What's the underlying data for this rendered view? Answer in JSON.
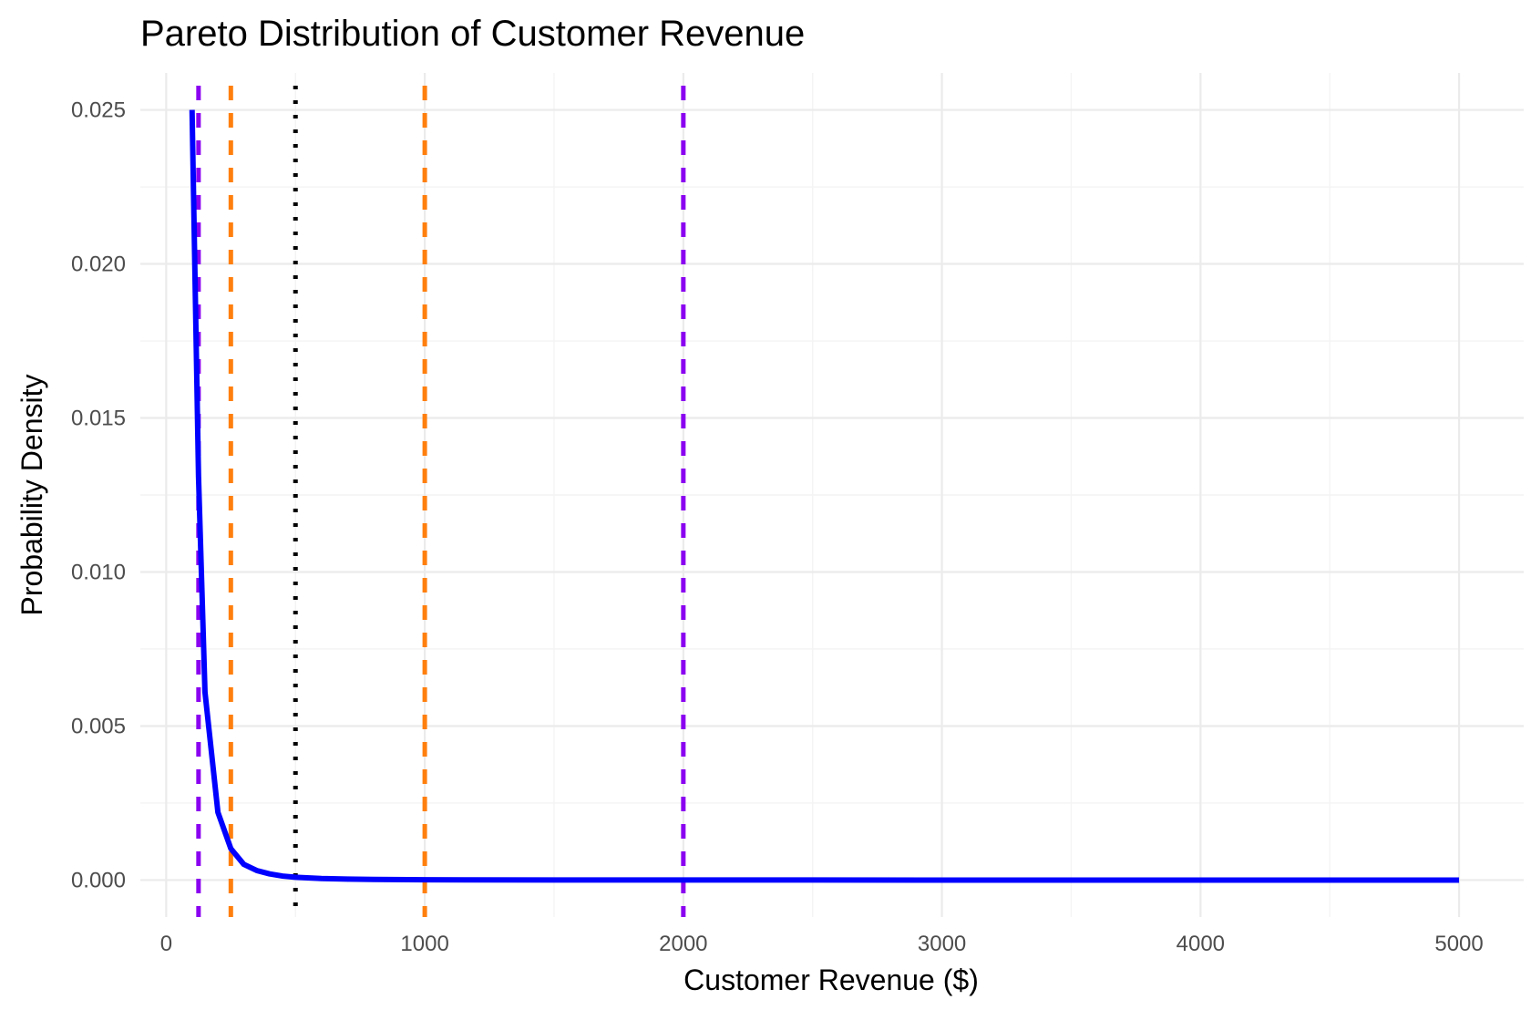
{
  "chart_data": {
    "type": "line",
    "title": "Pareto Distribution of Customer Revenue",
    "xlabel": "Customer Revenue ($)",
    "ylabel": "Probability Density",
    "xlim": [
      -100,
      5250
    ],
    "ylim": [
      -0.0012,
      0.0262
    ],
    "x_ticks": [
      0,
      1000,
      2000,
      3000,
      4000,
      5000
    ],
    "x_tick_labels": [
      "0",
      "1000",
      "2000",
      "3000",
      "4000",
      "5000"
    ],
    "y_ticks": [
      0,
      0.005,
      0.01,
      0.015,
      0.02,
      0.025
    ],
    "y_tick_labels": [
      "0.000",
      "0.005",
      "0.010",
      "0.015",
      "0.020",
      "0.025"
    ],
    "grid": true,
    "legend": "none",
    "series": [
      {
        "color": "#0000FF",
        "style": "solid",
        "x": [
          100,
          125,
          150,
          200,
          250,
          300,
          350,
          400,
          450,
          500,
          600,
          700,
          800,
          1000,
          1500,
          2000,
          3000,
          4000,
          5000
        ],
        "y": [
          0.025,
          0.0131,
          0.0061,
          0.0022,
          0.00102,
          0.00051,
          0.00031,
          0.0002,
          0.00013,
          9e-05,
          5e-05,
          3e-05,
          2e-05,
          1e-05,
          2e-06,
          1e-06,
          2e-07,
          1e-07,
          4e-08
        ]
      }
    ],
    "vlines": [
      {
        "x": 125,
        "color": "#8A00F0",
        "style": "dashed"
      },
      {
        "x": 250,
        "color": "#FF7F0E",
        "style": "dashed"
      },
      {
        "x": 500,
        "color": "#000000",
        "style": "dotted"
      },
      {
        "x": 1000,
        "color": "#FF7F0E",
        "style": "dashed"
      },
      {
        "x": 2000,
        "color": "#8A00F0",
        "style": "dashed"
      }
    ],
    "colors": {
      "background": "#FFFFFF",
      "grid_major": "#EBEBEB",
      "grid_minor": "#F4F4F4",
      "tick_text": "#4D4D4D"
    }
  }
}
